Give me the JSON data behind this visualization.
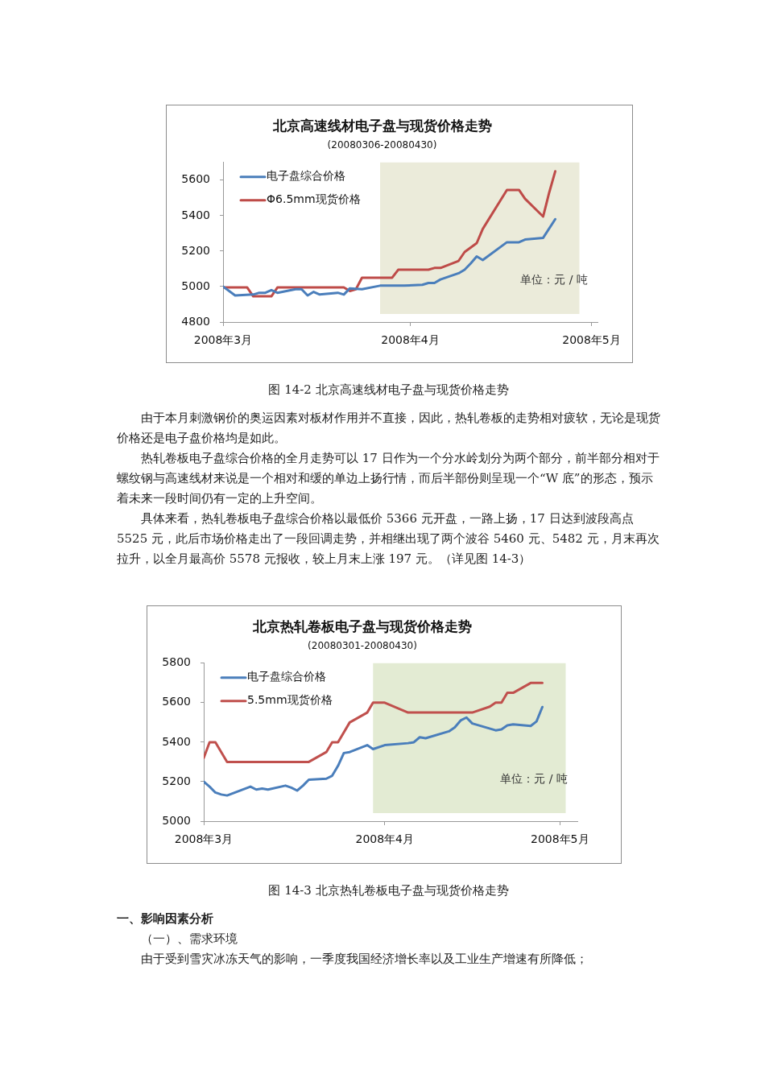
{
  "chart_data": [
    {
      "type": "line",
      "title": "北京高速线材电子盘与现货价格走势",
      "subtitle": "(20080306-20080430)",
      "xlim": [
        "2008-03-01",
        "2008-05-02"
      ],
      "xticks": [
        {
          "value": "2008-03-01",
          "label": "2008年3月"
        },
        {
          "value": "2008-04-01",
          "label": "2008年4月"
        },
        {
          "value": "2008-05-01",
          "label": "2008年5月"
        }
      ],
      "ylim": [
        4800,
        5700
      ],
      "yticks": [
        4800,
        5000,
        5200,
        5400,
        5600
      ],
      "grid": false,
      "legend": "top left",
      "marker": "none",
      "line_style": "solid",
      "bands": [
        {
          "axis": "x",
          "from": "2008-03-27",
          "to": "2008-04-29",
          "color": "#ebebda"
        }
      ],
      "series": [
        {
          "name": "电子盘综合价格",
          "color": "#4a7ebb",
          "x": [
            "2008-03-01",
            "2008-03-03",
            "2008-03-06",
            "2008-03-07",
            "2008-03-08",
            "2008-03-09",
            "2008-03-10",
            "2008-03-13",
            "2008-03-14",
            "2008-03-15",
            "2008-03-16",
            "2008-03-17",
            "2008-03-20",
            "2008-03-21",
            "2008-03-22",
            "2008-03-24",
            "2008-03-27",
            "2008-03-31",
            "2008-04-03",
            "2008-04-04",
            "2008-04-05",
            "2008-04-06",
            "2008-04-09",
            "2008-04-10",
            "2008-04-11",
            "2008-04-12",
            "2008-04-13",
            "2008-04-17",
            "2008-04-19",
            "2008-04-20",
            "2008-04-23",
            "2008-04-25"
          ],
          "values": [
            5000,
            4950,
            4955,
            4965,
            4965,
            4980,
            4965,
            4985,
            4985,
            4950,
            4970,
            4955,
            4965,
            4955,
            4990,
            4985,
            5005,
            5005,
            5010,
            5020,
            5020,
            5040,
            5075,
            5095,
            5130,
            5170,
            5150,
            5250,
            5250,
            5265,
            5275,
            5380
          ]
        },
        {
          "name": "Φ6.5mm现货价格",
          "color": "#be4b48",
          "x": [
            "2008-03-01",
            "2008-03-05",
            "2008-03-06",
            "2008-03-09",
            "2008-03-10",
            "2008-03-21",
            "2008-03-22",
            "2008-03-23",
            "2008-03-24",
            "2008-03-29",
            "2008-03-30",
            "2008-04-04",
            "2008-04-05",
            "2008-04-06",
            "2008-04-09",
            "2008-04-10",
            "2008-04-12",
            "2008-04-13",
            "2008-04-17",
            "2008-04-19",
            "2008-04-20",
            "2008-04-23",
            "2008-04-24",
            "2008-04-25"
          ],
          "values": [
            4995,
            4995,
            4945,
            4945,
            4995,
            4995,
            4975,
            4985,
            5050,
            5050,
            5095,
            5095,
            5105,
            5105,
            5145,
            5195,
            5245,
            5325,
            5545,
            5545,
            5495,
            5395,
            5530,
            5650
          ]
        }
      ],
      "annotations": [
        "单位：元 / 吨",
        "图 14-2 北京高速线材电子盘与现货价格走势",
        "由于本月刺激钢价的奥运因素对板材作用并不直接，因此，热轧卷板的走势相对疲软，无论是现货价格还是电子盘价格均是如此。",
        "热轧卷板电子盘综合价格的全月走势可以 17 日作为一个分水岭划分为两个部分，前半部分相对于螺纹钢与高速线材来说是一个相对和缓的单边上扬行情，而后半部份则呈现一个“W 底”的形态，预示着未来一段时间仍有一定的上升空间。",
        "具体来看，热轧卷板电子盘综合价格以最低价 5366 元开盘，一路上扬，17 日达到波段高点 5525 元，此后市场价格走出了一段回调走势，并相继出现了两个波谷 5460 元、5482 元，月末再次拉升，以全月最高价 5578 元报收，较上月末上涨 197 元。（详见图 14-3）"
      ]
    },
    {
      "type": "line",
      "title": "北京热轧卷板电子盘与现货价格走势",
      "subtitle": "(20080301-20080430)",
      "xlim": [
        "2008-03-01",
        "2008-05-04"
      ],
      "xticks": [
        {
          "value": "2008-03-01",
          "label": "2008年3月"
        },
        {
          "value": "2008-04-01",
          "label": "2008年4月"
        },
        {
          "value": "2008-05-01",
          "label": "2008年5月"
        }
      ],
      "ylim": [
        5000,
        5800
      ],
      "yticks": [
        5000,
        5200,
        5400,
        5600,
        5800
      ],
      "grid": false,
      "legend": "top left",
      "marker": "none",
      "line_style": "solid",
      "bands": [
        {
          "axis": "x",
          "from": "2008-03-30",
          "to": "2008-05-02",
          "color": "#e3ebd3"
        }
      ],
      "series": [
        {
          "name": "电子盘综合价格",
          "color": "#4a7ebb",
          "x": [
            "2008-03-01",
            "2008-03-02",
            "2008-03-03",
            "2008-03-04",
            "2008-03-05",
            "2008-03-09",
            "2008-03-10",
            "2008-03-11",
            "2008-03-12",
            "2008-03-15",
            "2008-03-16",
            "2008-03-17",
            "2008-03-18",
            "2008-03-19",
            "2008-03-22",
            "2008-03-23",
            "2008-03-24",
            "2008-03-25",
            "2008-03-26",
            "2008-03-29",
            "2008-03-30",
            "2008-04-01",
            "2008-04-05",
            "2008-04-06",
            "2008-04-07",
            "2008-04-08",
            "2008-04-12",
            "2008-04-13",
            "2008-04-14",
            "2008-04-15",
            "2008-04-16",
            "2008-04-20",
            "2008-04-21",
            "2008-04-22",
            "2008-04-23",
            "2008-04-26",
            "2008-04-27",
            "2008-04-28"
          ],
          "values": [
            5200,
            5175,
            5145,
            5135,
            5130,
            5175,
            5160,
            5165,
            5160,
            5180,
            5170,
            5155,
            5180,
            5210,
            5215,
            5230,
            5280,
            5345,
            5350,
            5385,
            5365,
            5385,
            5395,
            5400,
            5425,
            5420,
            5455,
            5475,
            5510,
            5525,
            5495,
            5460,
            5465,
            5485,
            5490,
            5482,
            5505,
            5578
          ]
        },
        {
          "name": "5.5mm现货价格",
          "color": "#c0504d",
          "x": [
            "2008-03-01",
            "2008-03-02",
            "2008-03-03",
            "2008-03-05",
            "2008-03-19",
            "2008-03-22",
            "2008-03-23",
            "2008-03-24",
            "2008-03-26",
            "2008-03-29",
            "2008-03-30",
            "2008-04-01",
            "2008-04-05",
            "2008-04-16",
            "2008-04-19",
            "2008-04-20",
            "2008-04-21",
            "2008-04-22",
            "2008-04-23",
            "2008-04-26",
            "2008-04-28"
          ],
          "values": [
            5320,
            5400,
            5400,
            5300,
            5300,
            5350,
            5400,
            5400,
            5500,
            5550,
            5600,
            5600,
            5550,
            5550,
            5580,
            5600,
            5600,
            5650,
            5650,
            5700,
            5700
          ]
        }
      ],
      "annotations": [
        "单位：元 / 吨",
        "图 14-3 北京热轧卷板电子盘与现货价格走势",
        "一、影响因素分析",
        "（一）、需求环境",
        "由于受到雪灾冰冻天气的影响，一季度我国经济增长率以及工业生产增速有所降低；"
      ]
    }
  ]
}
